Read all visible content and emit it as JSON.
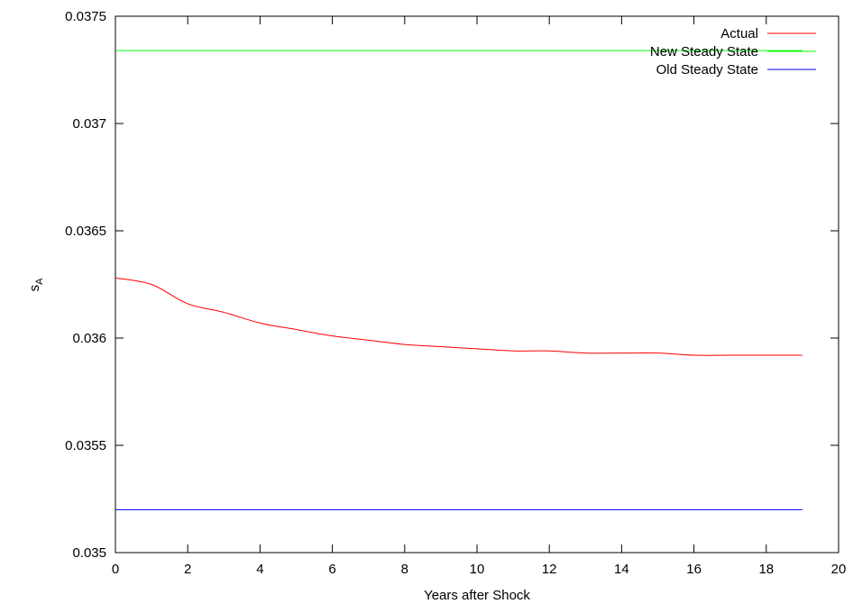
{
  "chart_data": {
    "type": "line",
    "title": "",
    "xlabel": "Years after Shock",
    "ylabel": {
      "base": "s",
      "subscript": "A"
    },
    "xlim": [
      0,
      20
    ],
    "ylim": [
      0.035,
      0.0375
    ],
    "x_ticks": [
      0,
      2,
      4,
      6,
      8,
      10,
      12,
      14,
      16,
      18,
      20
    ],
    "x_tick_labels": [
      "0",
      "2",
      "4",
      "6",
      "8",
      "10",
      "12",
      "14",
      "16",
      "18",
      "20"
    ],
    "y_ticks": [
      0.035,
      0.0355,
      0.036,
      0.0365,
      0.037,
      0.0375
    ],
    "y_tick_labels": [
      "0.035",
      "0.0355",
      "0.036",
      "0.0365",
      "0.037",
      "0.0375"
    ],
    "grid": false,
    "legend_position": "top-right",
    "series": [
      {
        "name": "Actual",
        "color": "#ff0000",
        "x": [
          0,
          1,
          2,
          3,
          4,
          5,
          6,
          7,
          8,
          9,
          10,
          11,
          12,
          13,
          14,
          15,
          16,
          17,
          18,
          19
        ],
        "y": [
          0.03628,
          0.03625,
          0.03616,
          0.03612,
          0.03607,
          0.03604,
          0.03601,
          0.03599,
          0.03597,
          0.03596,
          0.03595,
          0.03594,
          0.03594,
          0.03593,
          0.03593,
          0.03593,
          0.03592,
          0.03592,
          0.03592,
          0.03592
        ]
      },
      {
        "name": "New Steady State",
        "color": "#00ff00",
        "x": [
          0,
          19
        ],
        "y": [
          0.03734,
          0.03734
        ]
      },
      {
        "name": "Old Steady State",
        "color": "#0000ff",
        "x": [
          0,
          19
        ],
        "y": [
          0.0352,
          0.0352
        ]
      }
    ]
  }
}
